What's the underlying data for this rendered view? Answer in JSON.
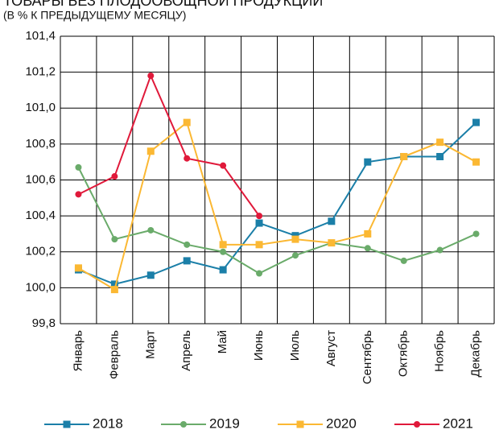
{
  "chart_data": {
    "type": "line",
    "title": "ТОВАРЫ БЕЗ ПЛОДООВОЩНОЙ ПРОДУКЦИИ",
    "subtitle": "(В % К ПРЕДЫДУЩЕМУ МЕСЯЦУ)",
    "categories": [
      "Январь",
      "Февраль",
      "Март",
      "Апрель",
      "Май",
      "Июнь",
      "Июль",
      "Август",
      "Сентябрь",
      "Октябрь",
      "Ноябрь",
      "Декабрь"
    ],
    "series": [
      {
        "name": "2018",
        "color": "#1b7fa8",
        "marker": "square",
        "values": [
          100.1,
          100.02,
          100.07,
          100.15,
          100.1,
          100.36,
          100.29,
          100.37,
          100.7,
          100.73,
          100.73,
          100.92
        ]
      },
      {
        "name": "2019",
        "color": "#6aab6a",
        "marker": "circle",
        "values": [
          100.67,
          100.27,
          100.32,
          100.24,
          100.2,
          100.08,
          100.18,
          100.25,
          100.22,
          100.15,
          100.21,
          100.3
        ]
      },
      {
        "name": "2020",
        "color": "#fbb833",
        "marker": "square",
        "values": [
          100.11,
          99.99,
          100.76,
          100.92,
          100.24,
          100.24,
          100.27,
          100.25,
          100.3,
          100.73,
          100.81,
          100.7
        ]
      },
      {
        "name": "2021",
        "color": "#e0193a",
        "marker": "circle",
        "values": [
          100.52,
          100.62,
          101.18,
          100.72,
          100.68,
          100.4,
          null,
          null,
          null,
          null,
          null,
          null
        ]
      }
    ],
    "ylim": [
      99.8,
      101.4
    ],
    "yticks": [
      {
        "value": 99.8,
        "label": "99,8"
      },
      {
        "value": 100.0,
        "label": "100,0"
      },
      {
        "value": 100.2,
        "label": "100,2"
      },
      {
        "value": 100.4,
        "label": "100,4"
      },
      {
        "value": 100.6,
        "label": "100,6"
      },
      {
        "value": 100.8,
        "label": "100,8"
      },
      {
        "value": 101.0,
        "label": "101,0"
      },
      {
        "value": 101.2,
        "label": "101,2"
      },
      {
        "value": 101.4,
        "label": "101,4"
      }
    ],
    "grid": true,
    "legend": "bottom"
  }
}
